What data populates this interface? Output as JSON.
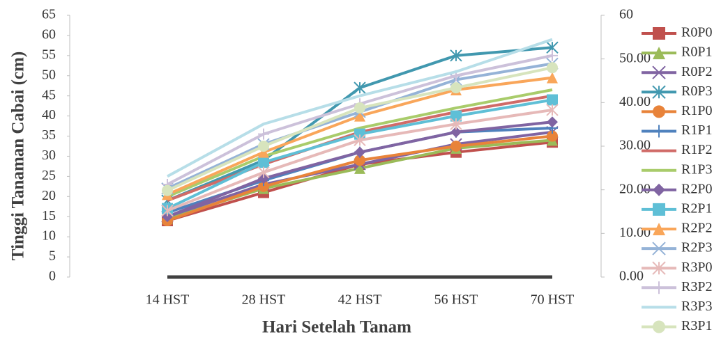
{
  "chart_data": {
    "type": "line",
    "x_label": "Hari Setelah Tanam",
    "y_label": "Tinggi Tanaman Cabai (cm)",
    "categories": [
      "14 HST",
      "28 HST",
      "42 HST",
      "56 HST",
      "70 HST"
    ],
    "ylim": [
      0,
      65
    ],
    "yticks": [
      0,
      5,
      10,
      15,
      20,
      25,
      30,
      35,
      40,
      45,
      50,
      55,
      60,
      65
    ],
    "y2lim": [
      0,
      60
    ],
    "y2ticks": [
      {
        "value": 0,
        "label": "0.00"
      },
      {
        "value": 10,
        "label": "10.00"
      },
      {
        "value": 20,
        "label": "20.00"
      },
      {
        "value": 30,
        "label": "30.00"
      },
      {
        "value": 40,
        "label": "40.00"
      },
      {
        "value": 50,
        "label": "50.00"
      },
      60
    ],
    "series": [
      {
        "name": "R0P0",
        "color": "#c0504d",
        "marker": "square",
        "values": [
          14,
          21,
          28,
          31,
          33.5
        ]
      },
      {
        "name": "R0P1",
        "color": "#9bbb59",
        "marker": "triangle",
        "values": [
          14.5,
          22,
          27,
          32,
          34
        ]
      },
      {
        "name": "R0P2",
        "color": "#8064a2",
        "marker": "x",
        "values": [
          15,
          23,
          28,
          33,
          36
        ]
      },
      {
        "name": "R0P3",
        "color": "#4198af",
        "marker": "star",
        "values": [
          19,
          29,
          47,
          55,
          57
        ]
      },
      {
        "name": "R1P0",
        "color": "#e8833a",
        "marker": "circle",
        "values": [
          14,
          22.5,
          29,
          32.5,
          35
        ]
      },
      {
        "name": "R1P1",
        "color": "#4f81bd",
        "marker": "plus",
        "values": [
          16,
          24,
          31,
          36,
          37
        ]
      },
      {
        "name": "R1P2",
        "color": "#d06b68",
        "marker": "none",
        "values": [
          19,
          28,
          36,
          41,
          45
        ]
      },
      {
        "name": "R1P3",
        "color": "#a9cc6b",
        "marker": "none",
        "values": [
          20,
          30,
          37,
          42,
          46.5
        ]
      },
      {
        "name": "R2P0",
        "color": "#8064a2",
        "marker": "diamond",
        "values": [
          15,
          24.5,
          31,
          36,
          38.5
        ]
      },
      {
        "name": "R2P1",
        "color": "#5fbfd6",
        "marker": "square",
        "values": [
          17,
          28.5,
          35.5,
          40,
          44
        ]
      },
      {
        "name": "R2P2",
        "color": "#f9a65a",
        "marker": "triangle",
        "values": [
          20.5,
          31,
          40,
          46.5,
          49.5
        ]
      },
      {
        "name": "R2P3",
        "color": "#95b3d7",
        "marker": "x",
        "values": [
          22,
          33,
          41,
          49,
          53
        ]
      },
      {
        "name": "R3P0",
        "color": "#e6b9b8",
        "marker": "star",
        "values": [
          16.5,
          26,
          34,
          38,
          41.5
        ]
      },
      {
        "name": "R3P2",
        "color": "#ccc1da",
        "marker": "plus",
        "values": [
          23,
          35.5,
          43,
          50,
          55
        ]
      },
      {
        "name": "R3P3",
        "color": "#b7dee8",
        "marker": "none",
        "values": [
          25,
          38,
          45,
          51,
          59
        ]
      },
      {
        "name": "R3P1",
        "color": "#d7e4bd",
        "marker": "circle",
        "values": [
          21.5,
          32.5,
          42,
          47,
          52
        ]
      },
      {
        "color": "#404040",
        "marker": "none",
        "axis": "y2",
        "values": [
          0,
          0,
          0,
          0,
          0
        ]
      }
    ]
  }
}
